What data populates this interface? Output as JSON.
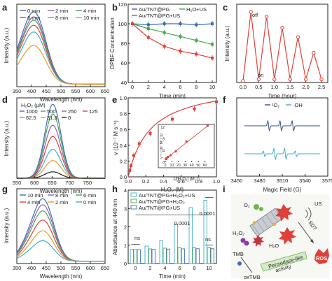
{
  "colors": {
    "red": "#e0403a",
    "green": "#45a84e",
    "blue": "#3a6fb7",
    "purple": "#9b59b6",
    "orange": "#e59b2e",
    "teal": "#3bb0c9",
    "ink": "#222222"
  },
  "panels": [
    {
      "id": "a",
      "label": "a"
    },
    {
      "id": "b",
      "label": "b"
    },
    {
      "id": "c",
      "label": "c"
    },
    {
      "id": "d",
      "label": "d"
    },
    {
      "id": "e",
      "label": "e"
    },
    {
      "id": "f",
      "label": "f"
    },
    {
      "id": "g",
      "label": "g"
    },
    {
      "id": "h",
      "label": "h"
    },
    {
      "id": "i",
      "label": "i"
    }
  ],
  "chart_data": [
    {
      "panel": "a",
      "type": "line",
      "xlabel": "Wavelength (nm)",
      "ylabel": "Intensity (a.u.)",
      "xlim": [
        350,
        650
      ],
      "xticks": [
        "350",
        "400",
        "450",
        "500",
        "550",
        "600",
        "650"
      ],
      "peak_x": 410,
      "series": [
        {
          "name": "0 min",
          "color": "#3a6fb7",
          "peak": 0.86
        },
        {
          "name": "2 min",
          "color": "#9b59b6",
          "peak": 0.8
        },
        {
          "name": "4 min",
          "color": "#45a84e",
          "peak": 0.76
        },
        {
          "name": "6 min",
          "color": "#e0403a",
          "peak": 0.7
        },
        {
          "name": "8 min",
          "color": "#3bb0c9",
          "peak": 0.62
        },
        {
          "name": "10 min",
          "color": "#e59b2e",
          "peak": 0.46
        }
      ]
    },
    {
      "panel": "b",
      "type": "line",
      "xlabel": "Time (min)",
      "ylabel": "DPBF Concentration",
      "xlim": [
        0,
        10
      ],
      "ylim": [
        40,
        120
      ],
      "xticks": [
        "0",
        "2",
        "4",
        "6",
        "8",
        "10"
      ],
      "yticks": [
        "40",
        "60",
        "80",
        "100",
        "120"
      ],
      "x": [
        0,
        2,
        4,
        6,
        8,
        10
      ],
      "series": [
        {
          "name": "Au/TNT@PG",
          "color": "#3a6fb7",
          "values": [
            100,
            99,
            100,
            100,
            99,
            100
          ]
        },
        {
          "name": "H₂O+US",
          "color": "#45a84e",
          "values": [
            100,
            95,
            91,
            87,
            83,
            79
          ]
        },
        {
          "name": "Au/TNT@PG+US",
          "color": "#e0403a",
          "values": [
            100,
            86,
            77,
            72,
            69,
            65
          ]
        }
      ]
    },
    {
      "panel": "c",
      "type": "line",
      "xlabel": "Time (hour)",
      "ylabel": "Intensity (a.u.)",
      "xlim": [
        -0.2,
        2.7
      ],
      "ylim": [
        0,
        0.5
      ],
      "xticks": [
        "0.0",
        "0.5",
        "1.0",
        "1.5",
        "2.0",
        "2.5"
      ],
      "x": [
        0,
        0.25,
        0.5,
        0.75,
        1.0,
        1.25,
        1.5,
        1.75,
        2.0,
        2.25,
        2.5
      ],
      "values": [
        0.01,
        0.45,
        0.02,
        0.42,
        0.02,
        0.35,
        0.02,
        0.29,
        0.02,
        0.19,
        0.02
      ],
      "annotations": [
        "off",
        "on"
      ],
      "color": "#e0403a"
    },
    {
      "panel": "d",
      "type": "line",
      "title": "H₂O₂ (μM)",
      "xlabel": "Wavelength (nm)",
      "ylabel": "Intensity (a.u.)",
      "xlim": [
        550,
        800
      ],
      "xticks": [
        "550",
        "600",
        "650",
        "700",
        "750"
      ],
      "peak_x": 652,
      "series": [
        {
          "name": "1000",
          "color": "#3a6fb7",
          "peak": 0.92
        },
        {
          "name": "500",
          "color": "#45a84e",
          "peak": 0.8
        },
        {
          "name": "250",
          "color": "#9b59b6",
          "peak": 0.66
        },
        {
          "name": "125",
          "color": "#e0403a",
          "peak": 0.52
        },
        {
          "name": "62.5",
          "color": "#3bb0c9",
          "peak": 0.36
        },
        {
          "name": "31.3",
          "color": "#e59b2e",
          "peak": 0.22
        },
        {
          "name": "0",
          "color": "#222222",
          "peak": 0.08
        }
      ]
    },
    {
      "panel": "e",
      "type": "scatter",
      "xlabel": "H₂O₂ (M)",
      "ylabel": "v (10⁻⁷ M s⁻¹)",
      "xlim": [
        0,
        1.0
      ],
      "ylim": [
        0,
        1.0
      ],
      "xticks": [
        "0.0",
        "0.2",
        "0.4",
        "0.6",
        "0.8",
        "1.0"
      ],
      "yticks": [
        "0.0",
        "0.2",
        "0.4",
        "0.6",
        "0.8",
        "1.0"
      ],
      "x": [
        0.0156,
        0.0313,
        0.0625,
        0.125,
        0.25,
        0.5,
        0.75,
        1.0
      ],
      "y": [
        0.08,
        0.14,
        0.27,
        0.42,
        0.55,
        0.73,
        0.86,
        0.95
      ],
      "inset": {
        "xlabel": "1/[H₂O₂] (M⁻¹)",
        "ylabel": "v⁻¹ (10⁷ M⁻¹ s)",
        "xlim": [
          0,
          70
        ],
        "ylim": [
          0,
          12
        ],
        "xticks": [
          "0",
          "10",
          "20",
          "30",
          "40",
          "50",
          "60"
        ],
        "yticks": [
          "0",
          "4",
          "8",
          "12"
        ],
        "x": [
          1,
          1.33,
          2,
          4,
          8,
          16,
          32,
          64
        ],
        "y": [
          1.05,
          1.16,
          1.37,
          1.82,
          2.38,
          3.7,
          7.1,
          12.5
        ]
      },
      "color": "#e0403a"
    },
    {
      "panel": "f",
      "type": "line",
      "xlabel": "Magic Field (G)",
      "xlim": [
        3450,
        3570
      ],
      "xticks": [
        "3450",
        "3480",
        "3510",
        "3540",
        "3570"
      ],
      "series": [
        {
          "name": "¹O₂",
          "color": "#2d4e8c"
        },
        {
          "name": "·OH",
          "color": "#3bb0c9"
        }
      ]
    },
    {
      "panel": "g",
      "type": "line",
      "xlabel": "Wavelength (nm)",
      "ylabel": "Intensity (a.u.)",
      "xlim": [
        350,
        650
      ],
      "xticks": [
        "350",
        "400",
        "450",
        "500",
        "550",
        "600",
        "650"
      ],
      "peak_x": 440,
      "series": [
        {
          "name": "10 min",
          "color": "#3a6fb7",
          "peak": 0.82
        },
        {
          "name": "8 min",
          "color": "#9b59b6",
          "peak": 0.74
        },
        {
          "name": "6 min",
          "color": "#45a84e",
          "peak": 0.66
        },
        {
          "name": "4 min",
          "color": "#e0403a",
          "peak": 0.54
        },
        {
          "name": "2 min",
          "color": "#e59b2e",
          "peak": 0.4
        },
        {
          "name": "0 min",
          "color": "#3bb0c9",
          "peak": 0.27
        }
      ]
    },
    {
      "panel": "h",
      "type": "bar",
      "xlabel": "Time (min)",
      "ylabel": "Absorbance at 440 nm",
      "ylim": [
        0,
        4
      ],
      "yticks": [
        "0",
        "1",
        "2",
        "3",
        "4"
      ],
      "categories": [
        "0",
        "2",
        "4",
        "6",
        "8",
        "10"
      ],
      "series": [
        {
          "name": "Au/TNT@PG+H₂O₂+US",
          "color": "#3bb0c9",
          "values": [
            0.78,
            0.95,
            1.25,
            2.15,
            3.05,
            3.45
          ]
        },
        {
          "name": "Au/TNT@PG+H₂O₂",
          "color": "#45a84e",
          "values": [
            0.76,
            0.8,
            0.84,
            0.86,
            0.86,
            0.86
          ]
        },
        {
          "name": "Au/TNT@PG+US",
          "color": "#3a6fb7",
          "values": [
            0.76,
            0.78,
            0.79,
            0.8,
            0.81,
            0.81
          ]
        }
      ],
      "annotations": [
        "ns",
        "0.0001",
        "0.0001",
        "ns"
      ]
    }
  ],
  "schematic": {
    "labels": [
      "O₂",
      "US",
      "SDT",
      "H₂O₂",
      "H₂O",
      "TMB",
      "oxTMB",
      "Peroxidase-like\nactivity",
      "ROS"
    ]
  }
}
